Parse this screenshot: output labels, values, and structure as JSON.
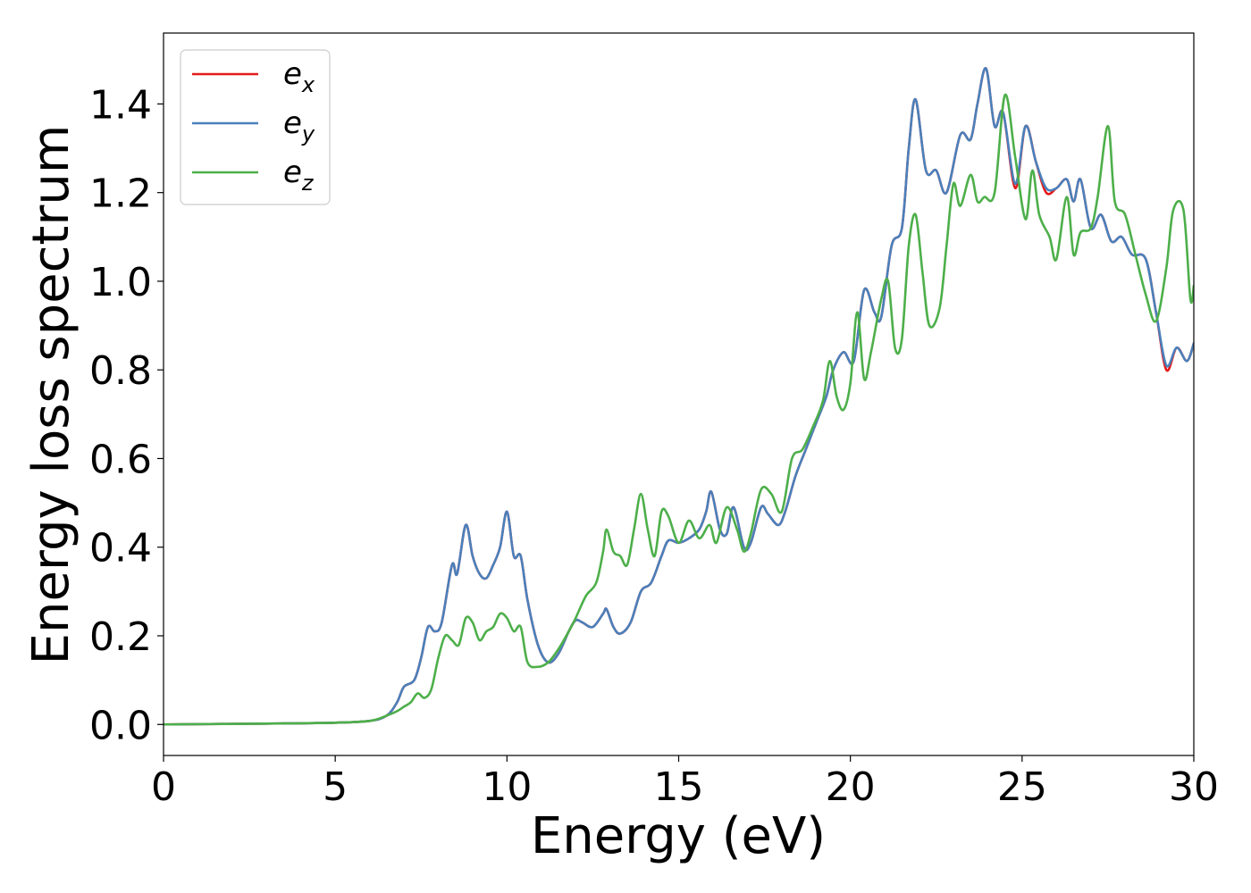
{
  "chart_data": {
    "type": "line",
    "xlabel": "Energy (eV)",
    "ylabel": "Energy loss spectrum",
    "xlim": [
      0,
      30
    ],
    "ylim": [
      -0.07,
      1.56
    ],
    "xticks": [
      0,
      5,
      10,
      15,
      20,
      25,
      30
    ],
    "xtick_labels": [
      "0",
      "5",
      "10",
      "15",
      "20",
      "25",
      "30"
    ],
    "yticks": [
      0.0,
      0.2,
      0.4,
      0.6,
      0.8,
      1.0,
      1.2,
      1.4
    ],
    "ytick_labels": [
      "0.0",
      "0.2",
      "0.4",
      "0.6",
      "0.8",
      "1.0",
      "1.2",
      "1.4"
    ],
    "grid": false,
    "legend_position": "top-left",
    "series": [
      {
        "name": "e",
        "subscript": "x",
        "color": "#e41a1c",
        "points": [
          [
            0,
            0
          ],
          [
            3,
            0.002
          ],
          [
            5,
            0.004
          ],
          [
            6,
            0.008
          ],
          [
            6.5,
            0.02
          ],
          [
            6.8,
            0.05
          ],
          [
            7.0,
            0.085
          ],
          [
            7.3,
            0.1
          ],
          [
            7.5,
            0.15
          ],
          [
            7.7,
            0.22
          ],
          [
            7.9,
            0.21
          ],
          [
            8.1,
            0.23
          ],
          [
            8.4,
            0.36
          ],
          [
            8.55,
            0.34
          ],
          [
            8.8,
            0.45
          ],
          [
            9.0,
            0.38
          ],
          [
            9.2,
            0.34
          ],
          [
            9.4,
            0.33
          ],
          [
            9.6,
            0.36
          ],
          [
            9.8,
            0.4
          ],
          [
            10.0,
            0.48
          ],
          [
            10.2,
            0.38
          ],
          [
            10.4,
            0.38
          ],
          [
            10.6,
            0.28
          ],
          [
            10.9,
            0.18
          ],
          [
            11.2,
            0.14
          ],
          [
            11.5,
            0.16
          ],
          [
            11.8,
            0.21
          ],
          [
            12.0,
            0.235
          ],
          [
            12.2,
            0.23
          ],
          [
            12.5,
            0.22
          ],
          [
            12.8,
            0.25
          ],
          [
            12.9,
            0.26
          ],
          [
            13.1,
            0.22
          ],
          [
            13.3,
            0.205
          ],
          [
            13.6,
            0.23
          ],
          [
            13.9,
            0.3
          ],
          [
            14.2,
            0.32
          ],
          [
            14.5,
            0.38
          ],
          [
            14.7,
            0.415
          ],
          [
            15.0,
            0.41
          ],
          [
            15.3,
            0.42
          ],
          [
            15.6,
            0.44
          ],
          [
            15.8,
            0.48
          ],
          [
            15.95,
            0.525
          ],
          [
            16.2,
            0.44
          ],
          [
            16.4,
            0.43
          ],
          [
            16.6,
            0.49
          ],
          [
            16.9,
            0.4
          ],
          [
            17.1,
            0.41
          ],
          [
            17.4,
            0.49
          ],
          [
            17.6,
            0.475
          ],
          [
            17.9,
            0.45
          ],
          [
            18.1,
            0.48
          ],
          [
            18.4,
            0.56
          ],
          [
            18.7,
            0.62
          ],
          [
            19.0,
            0.68
          ],
          [
            19.3,
            0.74
          ],
          [
            19.5,
            0.8
          ],
          [
            19.8,
            0.84
          ],
          [
            20.1,
            0.82
          ],
          [
            20.4,
            0.98
          ],
          [
            20.7,
            0.93
          ],
          [
            20.9,
            0.92
          ],
          [
            21.2,
            1.08
          ],
          [
            21.5,
            1.12
          ],
          [
            21.7,
            1.3
          ],
          [
            21.9,
            1.41
          ],
          [
            22.2,
            1.25
          ],
          [
            22.5,
            1.25
          ],
          [
            22.8,
            1.2
          ],
          [
            23.2,
            1.33
          ],
          [
            23.5,
            1.32
          ],
          [
            23.7,
            1.4
          ],
          [
            23.95,
            1.48
          ],
          [
            24.2,
            1.35
          ],
          [
            24.45,
            1.38
          ],
          [
            24.8,
            1.21
          ],
          [
            25.1,
            1.35
          ],
          [
            25.4,
            1.27
          ],
          [
            25.7,
            1.2
          ],
          [
            26.0,
            1.21
          ],
          [
            26.3,
            1.23
          ],
          [
            26.5,
            1.18
          ],
          [
            26.7,
            1.23
          ],
          [
            27.0,
            1.12
          ],
          [
            27.3,
            1.15
          ],
          [
            27.6,
            1.09
          ],
          [
            27.9,
            1.1
          ],
          [
            28.2,
            1.06
          ],
          [
            28.6,
            1.05
          ],
          [
            28.9,
            0.93
          ],
          [
            29.2,
            0.8
          ],
          [
            29.5,
            0.85
          ],
          [
            29.8,
            0.82
          ],
          [
            30.0,
            0.86
          ]
        ]
      },
      {
        "name": "e",
        "subscript": "y",
        "color": "#4a80bb",
        "points": [
          [
            0,
            0
          ],
          [
            3,
            0.002
          ],
          [
            5,
            0.004
          ],
          [
            6,
            0.008
          ],
          [
            6.5,
            0.02
          ],
          [
            6.8,
            0.05
          ],
          [
            7.0,
            0.085
          ],
          [
            7.3,
            0.1
          ],
          [
            7.5,
            0.15
          ],
          [
            7.7,
            0.22
          ],
          [
            7.9,
            0.21
          ],
          [
            8.1,
            0.23
          ],
          [
            8.4,
            0.36
          ],
          [
            8.55,
            0.34
          ],
          [
            8.8,
            0.45
          ],
          [
            9.0,
            0.38
          ],
          [
            9.2,
            0.34
          ],
          [
            9.4,
            0.33
          ],
          [
            9.6,
            0.36
          ],
          [
            9.8,
            0.4
          ],
          [
            10.0,
            0.48
          ],
          [
            10.2,
            0.38
          ],
          [
            10.4,
            0.38
          ],
          [
            10.6,
            0.28
          ],
          [
            10.9,
            0.18
          ],
          [
            11.2,
            0.14
          ],
          [
            11.5,
            0.16
          ],
          [
            11.8,
            0.21
          ],
          [
            12.0,
            0.235
          ],
          [
            12.2,
            0.23
          ],
          [
            12.5,
            0.22
          ],
          [
            12.8,
            0.25
          ],
          [
            12.9,
            0.26
          ],
          [
            13.1,
            0.22
          ],
          [
            13.3,
            0.205
          ],
          [
            13.6,
            0.23
          ],
          [
            13.9,
            0.3
          ],
          [
            14.2,
            0.32
          ],
          [
            14.5,
            0.38
          ],
          [
            14.7,
            0.415
          ],
          [
            15.0,
            0.41
          ],
          [
            15.3,
            0.42
          ],
          [
            15.6,
            0.44
          ],
          [
            15.8,
            0.48
          ],
          [
            15.95,
            0.525
          ],
          [
            16.2,
            0.44
          ],
          [
            16.4,
            0.43
          ],
          [
            16.6,
            0.49
          ],
          [
            16.9,
            0.4
          ],
          [
            17.1,
            0.41
          ],
          [
            17.4,
            0.49
          ],
          [
            17.6,
            0.475
          ],
          [
            17.9,
            0.45
          ],
          [
            18.1,
            0.48
          ],
          [
            18.4,
            0.56
          ],
          [
            18.7,
            0.62
          ],
          [
            19.0,
            0.68
          ],
          [
            19.3,
            0.74
          ],
          [
            19.5,
            0.8
          ],
          [
            19.8,
            0.84
          ],
          [
            20.1,
            0.82
          ],
          [
            20.4,
            0.98
          ],
          [
            20.7,
            0.93
          ],
          [
            20.9,
            0.92
          ],
          [
            21.2,
            1.08
          ],
          [
            21.5,
            1.12
          ],
          [
            21.7,
            1.3
          ],
          [
            21.9,
            1.41
          ],
          [
            22.2,
            1.25
          ],
          [
            22.5,
            1.25
          ],
          [
            22.8,
            1.2
          ],
          [
            23.2,
            1.33
          ],
          [
            23.5,
            1.32
          ],
          [
            23.7,
            1.4
          ],
          [
            23.95,
            1.48
          ],
          [
            24.2,
            1.35
          ],
          [
            24.45,
            1.38
          ],
          [
            24.8,
            1.22
          ],
          [
            25.1,
            1.35
          ],
          [
            25.4,
            1.27
          ],
          [
            25.7,
            1.21
          ],
          [
            26.0,
            1.21
          ],
          [
            26.3,
            1.23
          ],
          [
            26.5,
            1.18
          ],
          [
            26.7,
            1.23
          ],
          [
            27.0,
            1.12
          ],
          [
            27.3,
            1.15
          ],
          [
            27.6,
            1.09
          ],
          [
            27.9,
            1.1
          ],
          [
            28.2,
            1.06
          ],
          [
            28.6,
            1.05
          ],
          [
            28.9,
            0.93
          ],
          [
            29.2,
            0.81
          ],
          [
            29.5,
            0.85
          ],
          [
            29.8,
            0.82
          ],
          [
            30.0,
            0.86
          ]
        ]
      },
      {
        "name": "e",
        "subscript": "z",
        "color": "#4daf4a",
        "points": [
          [
            0,
            0
          ],
          [
            3,
            0.002
          ],
          [
            5,
            0.004
          ],
          [
            6,
            0.008
          ],
          [
            6.5,
            0.02
          ],
          [
            6.8,
            0.03
          ],
          [
            7.0,
            0.04
          ],
          [
            7.2,
            0.05
          ],
          [
            7.4,
            0.07
          ],
          [
            7.6,
            0.06
          ],
          [
            7.8,
            0.08
          ],
          [
            8.0,
            0.15
          ],
          [
            8.2,
            0.2
          ],
          [
            8.4,
            0.19
          ],
          [
            8.6,
            0.18
          ],
          [
            8.8,
            0.24
          ],
          [
            9.0,
            0.23
          ],
          [
            9.2,
            0.19
          ],
          [
            9.4,
            0.21
          ],
          [
            9.6,
            0.22
          ],
          [
            9.8,
            0.25
          ],
          [
            10.0,
            0.24
          ],
          [
            10.2,
            0.21
          ],
          [
            10.4,
            0.22
          ],
          [
            10.6,
            0.14
          ],
          [
            10.9,
            0.13
          ],
          [
            11.2,
            0.14
          ],
          [
            11.5,
            0.17
          ],
          [
            11.8,
            0.21
          ],
          [
            12.0,
            0.24
          ],
          [
            12.3,
            0.29
          ],
          [
            12.6,
            0.32
          ],
          [
            12.8,
            0.39
          ],
          [
            12.9,
            0.44
          ],
          [
            13.1,
            0.39
          ],
          [
            13.3,
            0.38
          ],
          [
            13.5,
            0.36
          ],
          [
            13.7,
            0.44
          ],
          [
            13.9,
            0.52
          ],
          [
            14.1,
            0.44
          ],
          [
            14.3,
            0.38
          ],
          [
            14.5,
            0.48
          ],
          [
            14.7,
            0.47
          ],
          [
            15.0,
            0.41
          ],
          [
            15.3,
            0.46
          ],
          [
            15.6,
            0.42
          ],
          [
            15.9,
            0.45
          ],
          [
            16.1,
            0.41
          ],
          [
            16.4,
            0.49
          ],
          [
            16.7,
            0.44
          ],
          [
            16.9,
            0.39
          ],
          [
            17.1,
            0.43
          ],
          [
            17.4,
            0.53
          ],
          [
            17.7,
            0.52
          ],
          [
            18.0,
            0.48
          ],
          [
            18.3,
            0.6
          ],
          [
            18.6,
            0.62
          ],
          [
            18.9,
            0.67
          ],
          [
            19.2,
            0.73
          ],
          [
            19.4,
            0.82
          ],
          [
            19.6,
            0.74
          ],
          [
            19.8,
            0.71
          ],
          [
            20.0,
            0.77
          ],
          [
            20.2,
            0.93
          ],
          [
            20.4,
            0.78
          ],
          [
            20.6,
            0.84
          ],
          [
            20.9,
            0.96
          ],
          [
            21.1,
            1.0
          ],
          [
            21.3,
            0.85
          ],
          [
            21.5,
            0.87
          ],
          [
            21.7,
            1.08
          ],
          [
            21.9,
            1.15
          ],
          [
            22.1,
            1.02
          ],
          [
            22.3,
            0.9
          ],
          [
            22.6,
            0.94
          ],
          [
            22.8,
            1.08
          ],
          [
            23.0,
            1.22
          ],
          [
            23.2,
            1.17
          ],
          [
            23.5,
            1.24
          ],
          [
            23.7,
            1.18
          ],
          [
            23.9,
            1.19
          ],
          [
            24.2,
            1.2
          ],
          [
            24.5,
            1.42
          ],
          [
            24.8,
            1.28
          ],
          [
            25.1,
            1.14
          ],
          [
            25.3,
            1.25
          ],
          [
            25.5,
            1.15
          ],
          [
            25.8,
            1.1
          ],
          [
            26.0,
            1.05
          ],
          [
            26.3,
            1.19
          ],
          [
            26.5,
            1.06
          ],
          [
            26.7,
            1.11
          ],
          [
            27.0,
            1.12
          ],
          [
            27.2,
            1.19
          ],
          [
            27.5,
            1.35
          ],
          [
            27.7,
            1.18
          ],
          [
            28.0,
            1.15
          ],
          [
            28.3,
            1.06
          ],
          [
            28.6,
            0.97
          ],
          [
            28.9,
            0.91
          ],
          [
            29.2,
            1.03
          ],
          [
            29.4,
            1.16
          ],
          [
            29.7,
            1.16
          ],
          [
            29.9,
            0.96
          ],
          [
            30.0,
            0.99
          ]
        ]
      }
    ]
  }
}
